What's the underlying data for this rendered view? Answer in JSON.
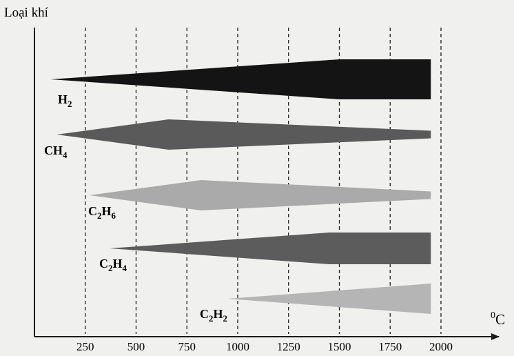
{
  "chart_data": {
    "type": "area",
    "ylabel": "Loại khí",
    "xunit_base": "C",
    "xunit_sup": "0",
    "x_ticks": [
      250,
      500,
      750,
      1000,
      1250,
      1500,
      1750,
      2000
    ],
    "xlim": [
      0,
      2270
    ],
    "grid": "dashed-vertical",
    "series": [
      {
        "name": "H2",
        "label_main": "H",
        "label_sub": "2",
        "label_tail": "",
        "color": "#141414",
        "profile": [
          [
            80,
            0
          ],
          [
            1500,
            1.0
          ],
          [
            1950,
            1.0
          ]
        ]
      },
      {
        "name": "CH4",
        "label_main": "CH",
        "label_sub": "4",
        "label_tail": "",
        "color": "#5a5a5a",
        "profile": [
          [
            110,
            0
          ],
          [
            660,
            1.0
          ],
          [
            1950,
            0.25
          ]
        ]
      },
      {
        "name": "C2H6",
        "label_main": "C",
        "label_sub": "2",
        "label_tail": "H6",
        "color": "#aaaaaa",
        "profile": [
          [
            270,
            0
          ],
          [
            820,
            1.0
          ],
          [
            1950,
            0.25
          ]
        ]
      },
      {
        "name": "C2H4",
        "label_main": "C",
        "label_sub": "2",
        "label_tail": "H4",
        "color": "#5c5c5c",
        "profile": [
          [
            370,
            0
          ],
          [
            1450,
            1.0
          ],
          [
            1950,
            1.0
          ]
        ]
      },
      {
        "name": "C2H2",
        "label_main": "C",
        "label_sub": "2",
        "label_tail": "H2",
        "color": "#b5b5b5",
        "profile": [
          [
            950,
            0
          ],
          [
            1950,
            1.0
          ]
        ]
      }
    ]
  }
}
